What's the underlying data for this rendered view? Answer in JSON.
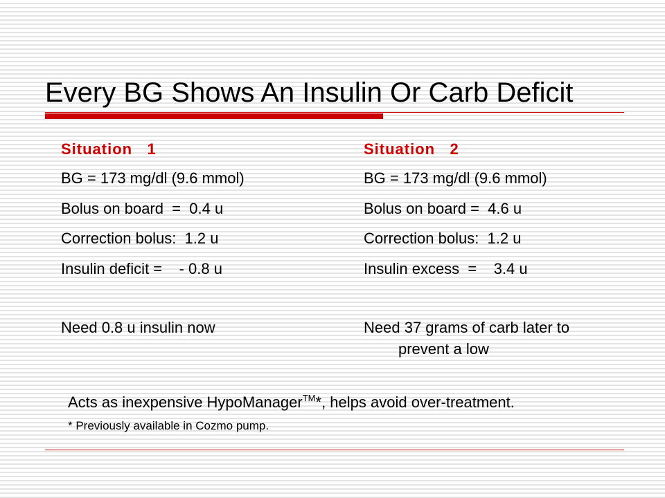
{
  "slide": {
    "title": "Every BG Shows An Insulin Or Carb Deficit"
  },
  "situation1": {
    "heading": "Situation   1",
    "bg": "BG = 173 mg/dl (9.6 mmol)",
    "bolus_on_board": "Bolus on board  =  0.4 u",
    "correction": "Correction bolus:  1.2 u",
    "result": "Insulin deficit =    - 0.8 u",
    "need": "Need 0.8 u insulin now"
  },
  "situation2": {
    "heading": "Situation   2",
    "bg": "BG = 173 mg/dl (9.6 mmol)",
    "bolus_on_board": "Bolus on board =  4.6 u",
    "correction": "Correction bolus:  1.2 u",
    "result": "Insulin excess  =    3.4 u",
    "need_line1": "Need 37 grams of carb later to",
    "need_line2": "prevent a low"
  },
  "note": {
    "before": "Acts as inexpensive HypoManager",
    "superscript": "TM",
    "after": "*, helps avoid over-treatment.",
    "footnote": "* Previously available in Cozmo pump."
  },
  "colors": {
    "accent": "#cc0000",
    "text": "#000000",
    "stripe": "#e4e4e4"
  }
}
